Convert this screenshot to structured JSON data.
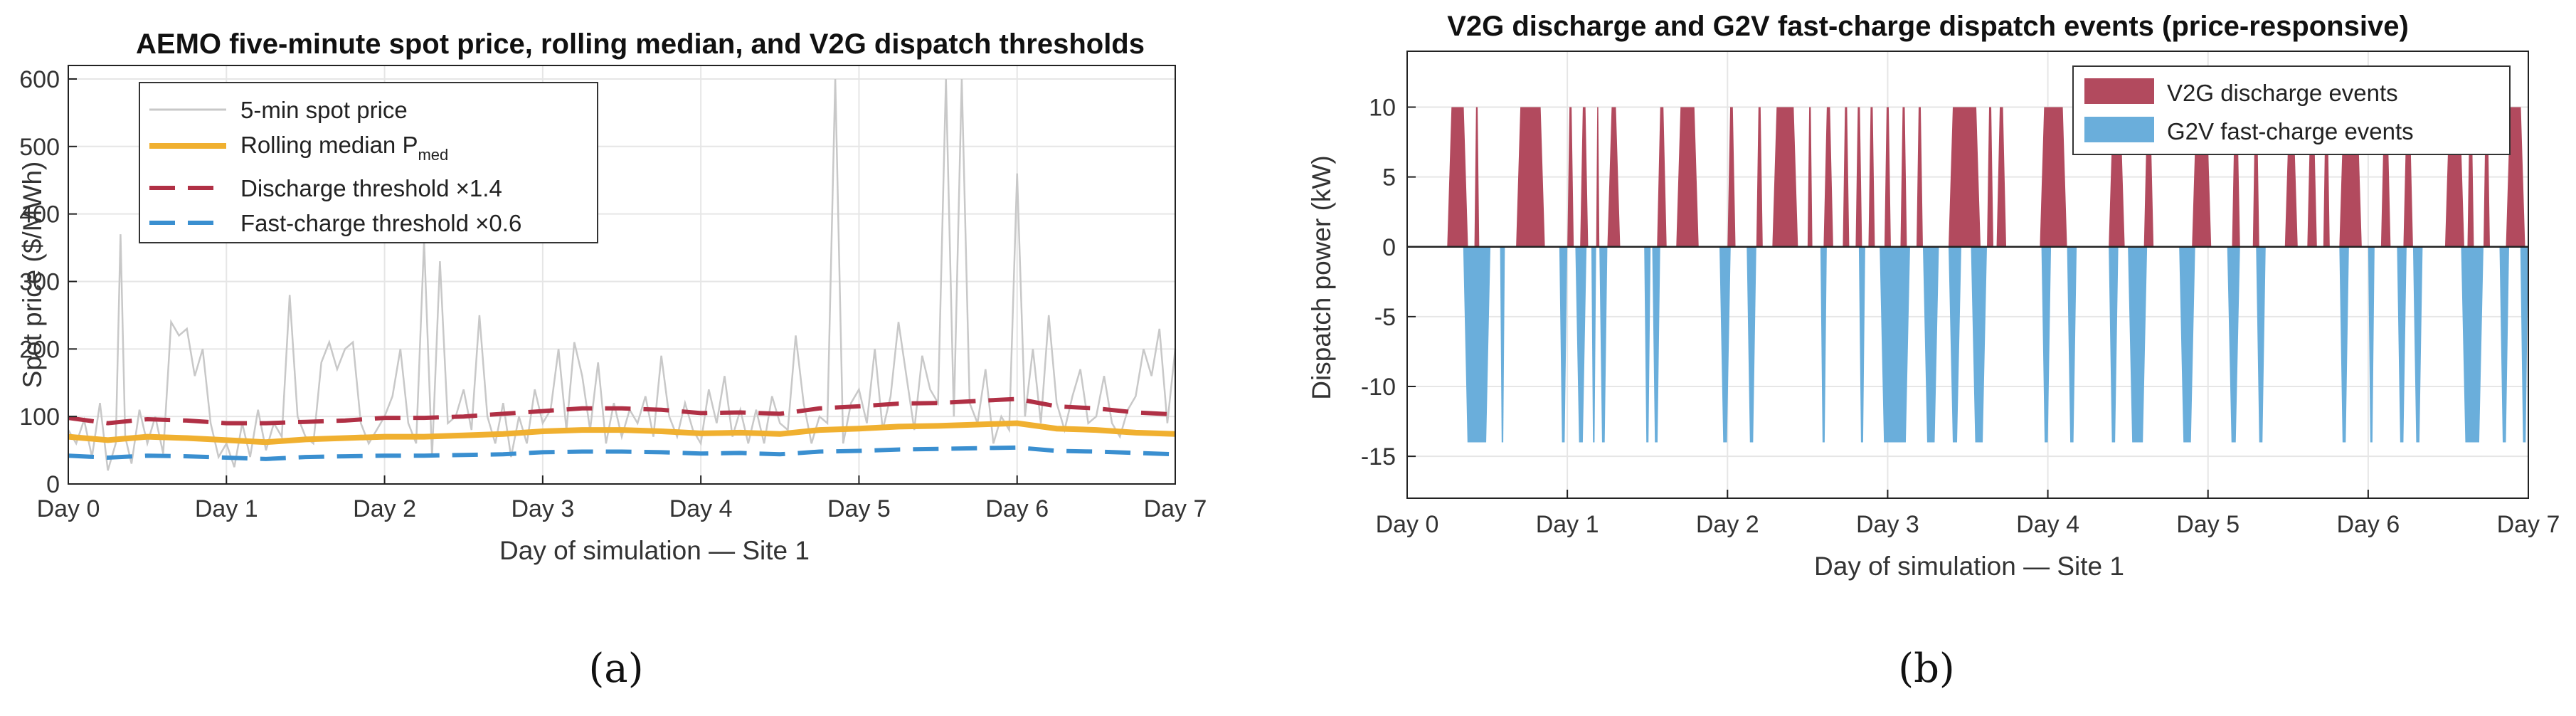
{
  "chart_data": [
    {
      "id": "a",
      "type": "line",
      "title": "AEMO five-minute spot price, rolling median, and V2G dispatch thresholds",
      "xlabel": "Day of simulation — Site 1",
      "ylabel": "Spot price ($/MWh)",
      "xlim": [
        0,
        7
      ],
      "ylim": [
        0,
        620
      ],
      "x_ticks": [
        0,
        1,
        2,
        3,
        4,
        5,
        6,
        7
      ],
      "x_tick_labels": [
        "Day 0",
        "Day 1",
        "Day 2",
        "Day 3",
        "Day 4",
        "Day 5",
        "Day 6",
        "Day 7"
      ],
      "y_ticks": [
        0,
        100,
        200,
        300,
        400,
        500,
        600
      ],
      "y_tick_labels": [
        "0",
        "100",
        "200",
        "300",
        "400",
        "500",
        "600"
      ],
      "grid": true,
      "legend_position": "top-left",
      "x": [
        0,
        0.25,
        0.5,
        0.75,
        1,
        1.25,
        1.5,
        1.75,
        2,
        2.25,
        2.5,
        2.75,
        3,
        3.25,
        3.5,
        3.75,
        4,
        4.25,
        4.5,
        4.75,
        5,
        5.25,
        5.5,
        5.75,
        6,
        6.25,
        6.5,
        6.75,
        7
      ],
      "series": [
        {
          "name": "5-min spot price",
          "color": "#c8c8c8",
          "style": "solid",
          "x": [
            0,
            0.05,
            0.1,
            0.15,
            0.2,
            0.25,
            0.3,
            0.33,
            0.36,
            0.4,
            0.45,
            0.5,
            0.55,
            0.6,
            0.65,
            0.7,
            0.75,
            0.8,
            0.85,
            0.9,
            0.95,
            1,
            1.05,
            1.1,
            1.15,
            1.2,
            1.25,
            1.3,
            1.35,
            1.4,
            1.45,
            1.5,
            1.55,
            1.6,
            1.65,
            1.7,
            1.75,
            1.8,
            1.85,
            1.9,
            1.95,
            2,
            2.05,
            2.1,
            2.15,
            2.2,
            2.25,
            2.3,
            2.35,
            2.4,
            2.45,
            2.5,
            2.55,
            2.6,
            2.65,
            2.7,
            2.75,
            2.8,
            2.85,
            2.9,
            2.95,
            3,
            3.05,
            3.1,
            3.15,
            3.2,
            3.25,
            3.3,
            3.35,
            3.4,
            3.45,
            3.5,
            3.55,
            3.6,
            3.65,
            3.7,
            3.75,
            3.8,
            3.85,
            3.9,
            3.95,
            4,
            4.05,
            4.1,
            4.15,
            4.2,
            4.25,
            4.3,
            4.35,
            4.4,
            4.45,
            4.5,
            4.55,
            4.6,
            4.65,
            4.7,
            4.75,
            4.8,
            4.85,
            4.9,
            4.95,
            5,
            5.05,
            5.1,
            5.15,
            5.2,
            5.25,
            5.3,
            5.35,
            5.4,
            5.45,
            5.5,
            5.55,
            5.6,
            5.65,
            5.7,
            5.75,
            5.8,
            5.85,
            5.9,
            5.95,
            6,
            6.05,
            6.1,
            6.15,
            6.2,
            6.25,
            6.3,
            6.35,
            6.4,
            6.45,
            6.5,
            6.55,
            6.6,
            6.65,
            6.7,
            6.75,
            6.8,
            6.85,
            6.9,
            6.95,
            7
          ],
          "values": [
            80,
            60,
            95,
            40,
            120,
            20,
            60,
            370,
            70,
            30,
            110,
            60,
            100,
            45,
            240,
            220,
            230,
            160,
            200,
            90,
            40,
            60,
            25,
            90,
            40,
            110,
            50,
            90,
            70,
            280,
            100,
            70,
            60,
            180,
            210,
            170,
            200,
            210,
            90,
            60,
            80,
            100,
            130,
            200,
            90,
            60,
            360,
            40,
            330,
            90,
            100,
            140,
            80,
            250,
            100,
            60,
            120,
            40,
            100,
            60,
            140,
            90,
            110,
            200,
            80,
            210,
            160,
            80,
            180,
            60,
            120,
            70,
            110,
            90,
            130,
            70,
            190,
            100,
            70,
            120,
            80,
            60,
            140,
            90,
            160,
            70,
            110,
            60,
            110,
            60,
            130,
            90,
            80,
            220,
            120,
            60,
            100,
            90,
            600,
            60,
            120,
            140,
            90,
            200,
            80,
            130,
            240,
            160,
            80,
            190,
            140,
            120,
            600,
            100,
            600,
            120,
            90,
            170,
            60,
            100,
            80,
            460,
            100,
            200,
            90,
            250,
            120,
            80,
            130,
            170,
            90,
            100,
            160,
            90,
            70,
            110,
            130,
            200,
            160,
            230,
            90,
            200
          ]
        },
        {
          "name": "Rolling median P_med",
          "color": "#f0b030",
          "style": "solid",
          "values": [
            70,
            65,
            70,
            68,
            65,
            62,
            66,
            68,
            70,
            70,
            72,
            74,
            78,
            80,
            80,
            78,
            75,
            76,
            74,
            80,
            82,
            85,
            86,
            88,
            90,
            82,
            80,
            76,
            74
          ]
        },
        {
          "name": "Discharge threshold ×1.4",
          "color": "#b03045",
          "style": "dashed",
          "values": [
            98,
            90,
            96,
            94,
            90,
            90,
            92,
            94,
            98,
            98,
            100,
            104,
            108,
            112,
            112,
            110,
            105,
            106,
            104,
            112,
            115,
            119,
            120,
            123,
            126,
            115,
            112,
            106,
            103
          ]
        },
        {
          "name": "Fast-charge threshold ×0.6",
          "color": "#3a8fd0",
          "style": "dashed",
          "values": [
            42,
            39,
            42,
            41,
            39,
            37,
            40,
            41,
            42,
            42,
            43,
            44,
            47,
            48,
            48,
            47,
            45,
            46,
            44,
            48,
            49,
            51,
            52,
            53,
            54,
            49,
            48,
            46,
            44
          ]
        }
      ],
      "caption": "(a)"
    },
    {
      "id": "b",
      "type": "area",
      "title": "V2G discharge and G2V fast-charge dispatch events (price-responsive)",
      "xlabel": "Day of simulation — Site 1",
      "ylabel": "Dispatch power (kW)",
      "xlim": [
        0,
        7
      ],
      "ylim": [
        -18,
        14
      ],
      "x_ticks": [
        0,
        1,
        2,
        3,
        4,
        5,
        6,
        7
      ],
      "x_tick_labels": [
        "Day 0",
        "Day 1",
        "Day 2",
        "Day 3",
        "Day 4",
        "Day 5",
        "Day 6",
        "Day 7"
      ],
      "y_ticks": [
        -15,
        -10,
        -5,
        0,
        5,
        10
      ],
      "y_tick_labels": [
        "-15",
        "-10",
        "-5",
        "0",
        "5",
        "10"
      ],
      "grid": true,
      "legend_position": "top-right",
      "series": [
        {
          "name": "V2G discharge events",
          "color": "#b24a5e",
          "value": 10,
          "intervals": [
            [
              0.25,
              0.38
            ],
            [
              0.42,
              0.45
            ],
            [
              0.68,
              0.86
            ],
            [
              1.0,
              1.04
            ],
            [
              1.08,
              1.13
            ],
            [
              1.18,
              1.2
            ],
            [
              1.25,
              1.33
            ],
            [
              1.56,
              1.62
            ],
            [
              1.68,
              1.82
            ],
            [
              2.0,
              2.05
            ],
            [
              2.18,
              2.22
            ],
            [
              2.28,
              2.44
            ],
            [
              2.5,
              2.53
            ],
            [
              2.6,
              2.66
            ],
            [
              2.72,
              2.76
            ],
            [
              2.8,
              2.84
            ],
            [
              2.88,
              2.92
            ],
            [
              2.98,
              3.02
            ],
            [
              3.08,
              3.12
            ],
            [
              3.18,
              3.22
            ],
            [
              3.38,
              3.58
            ],
            [
              3.62,
              3.66
            ],
            [
              3.68,
              3.74
            ],
            [
              3.95,
              4.12
            ],
            [
              4.38,
              4.48
            ],
            [
              4.6,
              4.66
            ],
            [
              4.9,
              5.02
            ],
            [
              5.15,
              5.2
            ],
            [
              5.28,
              5.32
            ],
            [
              5.48,
              5.56
            ],
            [
              5.62,
              5.68
            ],
            [
              5.72,
              5.76
            ],
            [
              5.82,
              5.96
            ],
            [
              6.08,
              6.14
            ],
            [
              6.22,
              6.28
            ],
            [
              6.48,
              6.6
            ],
            [
              6.62,
              6.66
            ],
            [
              6.72,
              6.76
            ],
            [
              6.86,
              6.98
            ]
          ]
        },
        {
          "name": "G2V fast-charge events",
          "color": "#6aaedb",
          "value": -14,
          "intervals": [
            [
              0.35,
              0.52
            ],
            [
              0.58,
              0.61
            ],
            [
              0.95,
              1.0
            ],
            [
              1.05,
              1.12
            ],
            [
              1.15,
              1.18
            ],
            [
              1.2,
              1.25
            ],
            [
              1.48,
              1.52
            ],
            [
              1.53,
              1.58
            ],
            [
              1.95,
              2.02
            ],
            [
              2.12,
              2.18
            ],
            [
              2.58,
              2.62
            ],
            [
              2.82,
              2.86
            ],
            [
              2.95,
              3.14
            ],
            [
              3.22,
              3.32
            ],
            [
              3.38,
              3.46
            ],
            [
              3.52,
              3.62
            ],
            [
              3.96,
              4.02
            ],
            [
              4.12,
              4.18
            ],
            [
              4.38,
              4.44
            ],
            [
              4.5,
              4.62
            ],
            [
              4.82,
              4.92
            ],
            [
              5.12,
              5.2
            ],
            [
              5.3,
              5.36
            ],
            [
              5.82,
              5.88
            ],
            [
              6.0,
              6.04
            ],
            [
              6.18,
              6.24
            ],
            [
              6.28,
              6.34
            ],
            [
              6.58,
              6.72
            ],
            [
              6.82,
              6.88
            ],
            [
              6.95,
              7.0
            ]
          ]
        }
      ],
      "caption": "(b)"
    }
  ]
}
